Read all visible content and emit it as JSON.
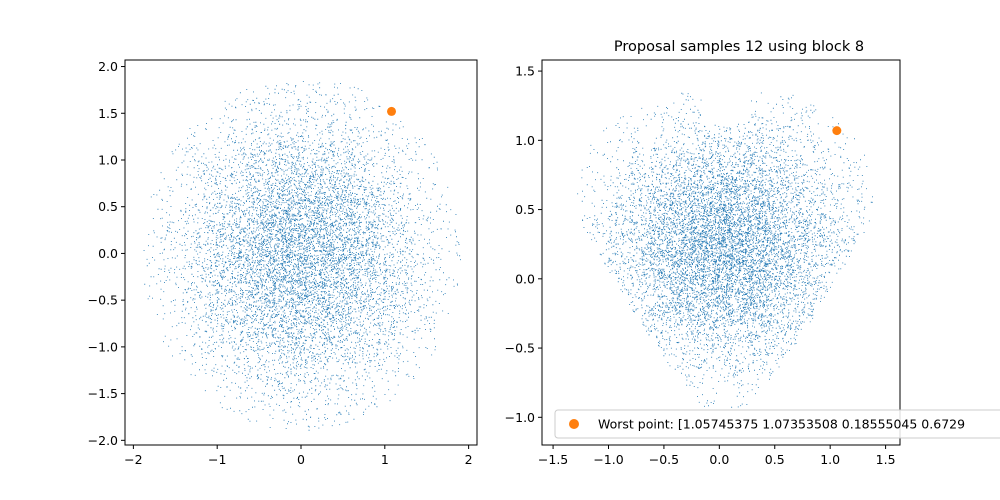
{
  "colors": {
    "samples": "#1f77b4",
    "worst_point": "#ff7f0e",
    "axes": "#000000",
    "legend_border": "#cccccc"
  },
  "chart_data": [
    {
      "type": "scatter",
      "title": "",
      "xlim": [
        -2.1,
        2.1
      ],
      "ylim": [
        -2.05,
        2.07
      ],
      "xticks": [
        -2,
        -1,
        0,
        1,
        2
      ],
      "xtick_labels": [
        "−2",
        "−1",
        "0",
        "1",
        "2"
      ],
      "yticks": [
        -2.0,
        -1.5,
        -1.0,
        -0.5,
        0.0,
        0.5,
        1.0,
        1.5,
        2.0
      ],
      "ytick_labels": [
        "−2.0",
        "−1.5",
        "−1.0",
        "−0.5",
        "0.0",
        "0.5",
        "1.0",
        "1.5",
        "2.0"
      ],
      "grid": false,
      "series": [
        {
          "kind": "sample-cloud",
          "shape": "disk",
          "center": [
            0.0,
            0.0
          ],
          "radius": 1.9,
          "count": 9000
        },
        {
          "kind": "marker",
          "x": 1.08,
          "y": 1.52
        }
      ]
    },
    {
      "type": "scatter",
      "title": "Proposal samples 12 using block 8",
      "xlim": [
        -1.6,
        1.63
      ],
      "ylim": [
        -1.2,
        1.58
      ],
      "xticks": [
        -1.5,
        -1.0,
        -0.5,
        0.0,
        0.5,
        1.0,
        1.5
      ],
      "xtick_labels": [
        "−1.5",
        "−1.0",
        "−0.5",
        "0.0",
        "0.5",
        "1.0",
        "1.5"
      ],
      "yticks": [
        -1.0,
        -0.5,
        0.0,
        0.5,
        1.0,
        1.5
      ],
      "ytick_labels": [
        "−1.0",
        "−0.5",
        "0.0",
        "0.5",
        "1.0",
        "1.5"
      ],
      "grid": false,
      "legend": {
        "placement": "lower-right",
        "label": "Worst point: [1.05745375 1.07353508 0.18555045 0.6729"
      },
      "series": [
        {
          "kind": "sample-cloud",
          "shape": "heart",
          "center": [
            0.05,
            0.25
          ],
          "x_range": [
            -1.35,
            1.45
          ],
          "y_range": [
            -0.95,
            1.35
          ],
          "count": 9000
        },
        {
          "kind": "marker",
          "x": 1.06,
          "y": 1.07,
          "name": "Worst point: [1.05745375 1.07353508 0.18555045 0.6729"
        }
      ]
    }
  ]
}
